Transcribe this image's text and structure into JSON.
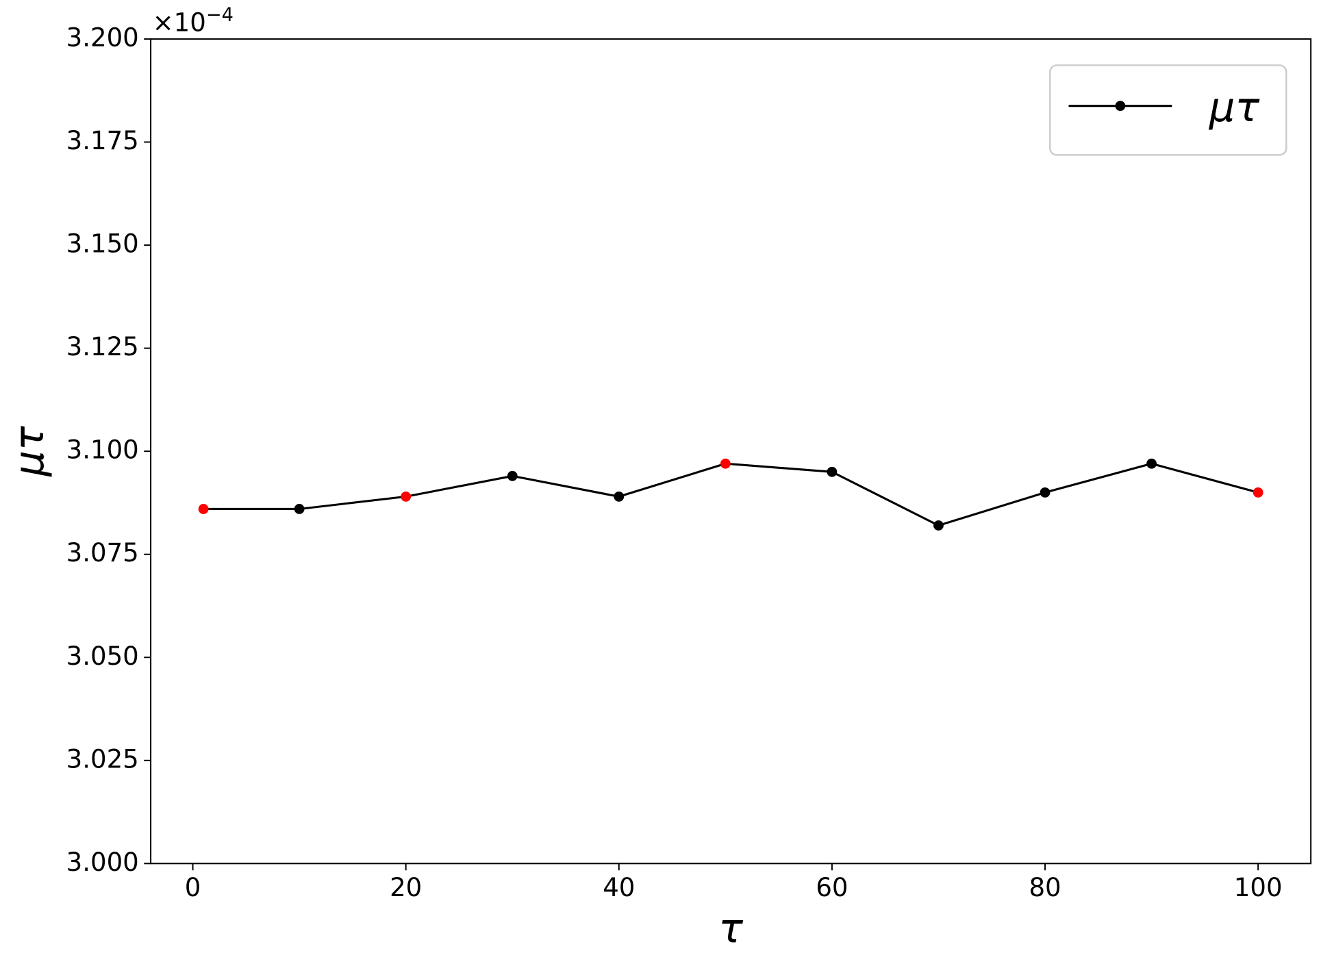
{
  "chart_data": {
    "type": "line",
    "x_label": "τ",
    "y_label": "μτ",
    "y_offset": {
      "base": "×10",
      "exponent": "−4"
    },
    "x": [
      1,
      10,
      20,
      30,
      40,
      50,
      60,
      70,
      80,
      90,
      100
    ],
    "series": [
      {
        "name": "μτ",
        "color": "#000000",
        "values": [
          3.086,
          3.086,
          3.089,
          3.094,
          3.089,
          3.097,
          3.095,
          3.082,
          3.09,
          3.097,
          3.09
        ],
        "marker_colors": [
          "#ff0000",
          "#000000",
          "#ff0000",
          "#000000",
          "#000000",
          "#ff0000",
          "#000000",
          "#000000",
          "#000000",
          "#000000",
          "#ff0000"
        ]
      }
    ],
    "xlim": [
      -3.95,
      104.95
    ],
    "xticks": [
      0,
      20,
      40,
      60,
      80,
      100
    ],
    "ylim": [
      3.0,
      3.2
    ],
    "yticks": [
      {
        "value": 3.0,
        "label": "3.000"
      },
      {
        "value": 3.025,
        "label": "3.025"
      },
      {
        "value": 3.05,
        "label": "3.050"
      },
      {
        "value": 3.075,
        "label": "3.075"
      },
      {
        "value": 3.1,
        "label": "3.100"
      },
      {
        "value": 3.125,
        "label": "3.125"
      },
      {
        "value": 3.15,
        "label": "3.150"
      },
      {
        "value": 3.175,
        "label": "3.175"
      },
      {
        "value": 3.2,
        "label": "3.200"
      }
    ],
    "grid": false,
    "legend": "upper right"
  }
}
